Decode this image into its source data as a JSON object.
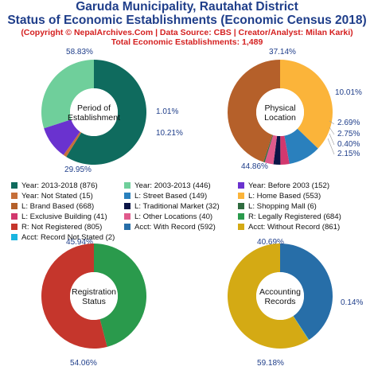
{
  "header": {
    "title_line1": "Garuda Municipality, Rautahat District",
    "title_line2": "Status of Economic Establishments (Economic Census 2018)",
    "credit": "(Copyright © NepalArchives.Com | Data Source: CBS | Creator/Analyst: Milan Karki)",
    "total": "Total Economic Establishments: 1,489"
  },
  "chart_data": [
    {
      "type": "pie",
      "title": "Period of Establishment",
      "center_lines": [
        "Period of",
        "Establishment"
      ],
      "slices": [
        {
          "label": "Year: 2013-2018",
          "value": 876,
          "pct": "58.83%",
          "color": "#0f6b5e"
        },
        {
          "label": "Year: Not Stated",
          "value": 15,
          "pct": "1.01%",
          "color": "#c66f3a"
        },
        {
          "label": "Year: Before 2003",
          "value": 152,
          "pct": "10.21%",
          "color": "#6a32cf"
        },
        {
          "label": "Year: 2003-2013",
          "value": 446,
          "pct": "29.95%",
          "color": "#6fcf9b"
        }
      ]
    },
    {
      "type": "pie",
      "title": "Physical Location",
      "center_lines": [
        "Physical",
        "Location"
      ],
      "slices": [
        {
          "label": "L: Home Based",
          "value": 553,
          "pct": "37.14%",
          "color": "#fbb43a"
        },
        {
          "label": "L: Street Based",
          "value": 149,
          "pct": "10.01%",
          "color": "#2a80bd"
        },
        {
          "label": "L: Exclusive Building",
          "value": 41,
          "pct": "2.75%",
          "color": "#d2386e"
        },
        {
          "label": "L: Traditional Market",
          "value": 32,
          "pct": "2.15%",
          "color": "#0b1446"
        },
        {
          "label": "L: Other Locations",
          "value": 40,
          "pct": "2.69%",
          "color": "#e05a8c"
        },
        {
          "label": "L: Shopping Mall",
          "value": 6,
          "pct": "0.40%",
          "color": "#2f6b3f"
        },
        {
          "label": "L: Brand Based",
          "value": 668,
          "pct": "44.86%",
          "color": "#b5602a"
        }
      ]
    },
    {
      "type": "pie",
      "title": "Registration Status",
      "center_lines": [
        "Registration",
        "Status"
      ],
      "slices": [
        {
          "label": "R: Legally Registered",
          "value": 684,
          "pct": "45.94%",
          "color": "#2a9a4c"
        },
        {
          "label": "R: Not Registered",
          "value": 805,
          "pct": "54.06%",
          "color": "#c5362c"
        }
      ]
    },
    {
      "type": "pie",
      "title": "Accounting Records",
      "center_lines": [
        "Accounting",
        "Records"
      ],
      "slices": [
        {
          "label": "Acct: With Record",
          "value": 592,
          "pct": "40.69%",
          "color": "#276ea8"
        },
        {
          "label": "Acct: Record Not Stated",
          "value": 2,
          "pct": "0.14%",
          "color": "#1ab5e0"
        },
        {
          "label": "Acct: Without Record",
          "value": 861,
          "pct": "59.18%",
          "color": "#d4aa14"
        }
      ]
    }
  ],
  "legend": [
    {
      "text": "Year: 2013-2018 (876)",
      "color": "#0f6b5e"
    },
    {
      "text": "Year: 2003-2013 (446)",
      "color": "#6fcf9b"
    },
    {
      "text": "Year: Before 2003 (152)",
      "color": "#6a32cf"
    },
    {
      "text": "Year: Not Stated (15)",
      "color": "#c66f3a"
    },
    {
      "text": "L: Street Based (149)",
      "color": "#2a80bd"
    },
    {
      "text": "L: Home Based (553)",
      "color": "#fbb43a"
    },
    {
      "text": "L: Brand Based (668)",
      "color": "#b5602a"
    },
    {
      "text": "L: Traditional Market (32)",
      "color": "#0b1446"
    },
    {
      "text": "L: Shopping Mall (6)",
      "color": "#2f6b3f"
    },
    {
      "text": "L: Exclusive Building (41)",
      "color": "#d2386e"
    },
    {
      "text": "L: Other Locations (40)",
      "color": "#e05a8c"
    },
    {
      "text": "R: Legally Registered (684)",
      "color": "#2a9a4c"
    },
    {
      "text": "R: Not Registered (805)",
      "color": "#c5362c"
    },
    {
      "text": "Acct: With Record (592)",
      "color": "#276ea8"
    },
    {
      "text": "Acct: Without Record (861)",
      "color": "#d4aa14"
    },
    {
      "text": "Acct: Record Not Stated (2)",
      "color": "#1ab5e0"
    }
  ]
}
